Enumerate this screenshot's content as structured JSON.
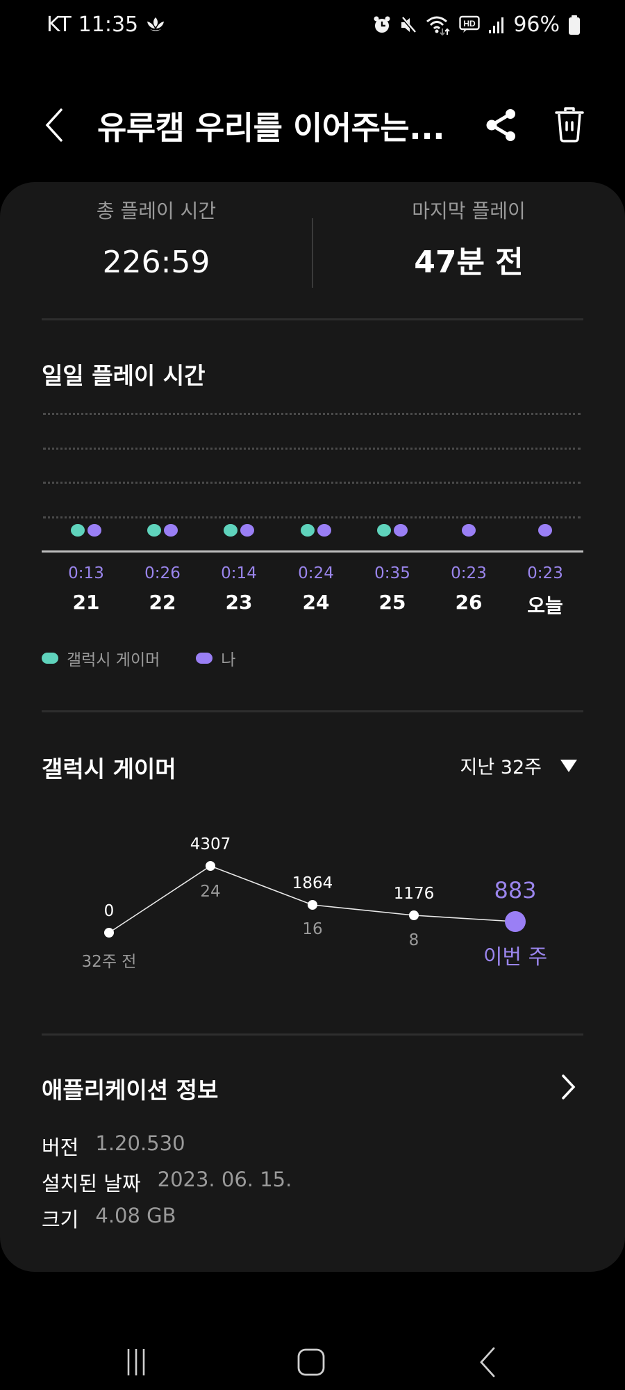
{
  "status_bar": {
    "carrier": "KT",
    "time": "11:35",
    "battery": "96%",
    "icons": [
      "flower-notification-icon",
      "alarm-icon",
      "mute-icon",
      "wifi-icon",
      "hd-voice-icon",
      "signal-icon",
      "battery-icon"
    ]
  },
  "app_bar": {
    "title": "유루캠 우리를 이어주는...",
    "back_icon": "chevron-left-icon",
    "share_icon": "share-icon",
    "delete_icon": "trash-icon"
  },
  "summary": {
    "total_label": "총 플레이 시간",
    "total_value": "226:59",
    "last_label": "마지막 플레이",
    "last_value": "47분 전"
  },
  "daily": {
    "title": "일일 플레이 시간",
    "days": [
      {
        "label": "21",
        "time": "0:13",
        "gamer": true,
        "me": true
      },
      {
        "label": "22",
        "time": "0:26",
        "gamer": true,
        "me": true
      },
      {
        "label": "23",
        "time": "0:14",
        "gamer": true,
        "me": true
      },
      {
        "label": "24",
        "time": "0:24",
        "gamer": true,
        "me": true
      },
      {
        "label": "25",
        "time": "0:35",
        "gamer": true,
        "me": true
      },
      {
        "label": "26",
        "time": "0:23",
        "gamer": false,
        "me": true
      },
      {
        "label": "오늘",
        "time": "0:23",
        "gamer": false,
        "me": true
      }
    ],
    "legend": [
      {
        "label": "갤럭시 게이머",
        "color": "#5fd3bc"
      },
      {
        "label": "나",
        "color": "#9a7ff5"
      }
    ]
  },
  "weekly": {
    "title": "갤럭시 게이머",
    "period": "지난 32주",
    "points": [
      {
        "value": "0",
        "label": "32주 전"
      },
      {
        "value": "4307",
        "label": "24"
      },
      {
        "value": "1864",
        "label": "16"
      },
      {
        "value": "1176",
        "label": "8"
      },
      {
        "value": "883",
        "label": "이번 주"
      }
    ]
  },
  "app_info": {
    "title": "애플리케이션 정보",
    "rows": [
      {
        "key": "버전",
        "value": "1.20.530"
      },
      {
        "key": "설치된 날짜",
        "value": "2023. 06. 15."
      },
      {
        "key": "크기",
        "value": "4.08 GB"
      }
    ]
  },
  "colors": {
    "accent_purple": "#9a7ff5",
    "accent_teal": "#5fd3bc",
    "card_bg": "#181818"
  },
  "chart_data": [
    {
      "type": "scatter",
      "title": "일일 플레이 시간",
      "categories": [
        "21",
        "22",
        "23",
        "24",
        "25",
        "26",
        "오늘"
      ],
      "series": [
        {
          "name": "갤럭시 게이머",
          "present": [
            1,
            1,
            1,
            1,
            1,
            0,
            0
          ]
        },
        {
          "name": "나",
          "values": [
            "0:13",
            "0:26",
            "0:14",
            "0:24",
            "0:35",
            "0:23",
            "0:23"
          ]
        }
      ],
      "grid": true,
      "legend_position": "bottom"
    },
    {
      "type": "line",
      "title": "갤럭시 게이머",
      "subtitle": "지난 32주",
      "categories": [
        "32주 전",
        "24",
        "16",
        "8",
        "이번 주"
      ],
      "values": [
        0,
        4307,
        1864,
        1176,
        883
      ]
    }
  ]
}
